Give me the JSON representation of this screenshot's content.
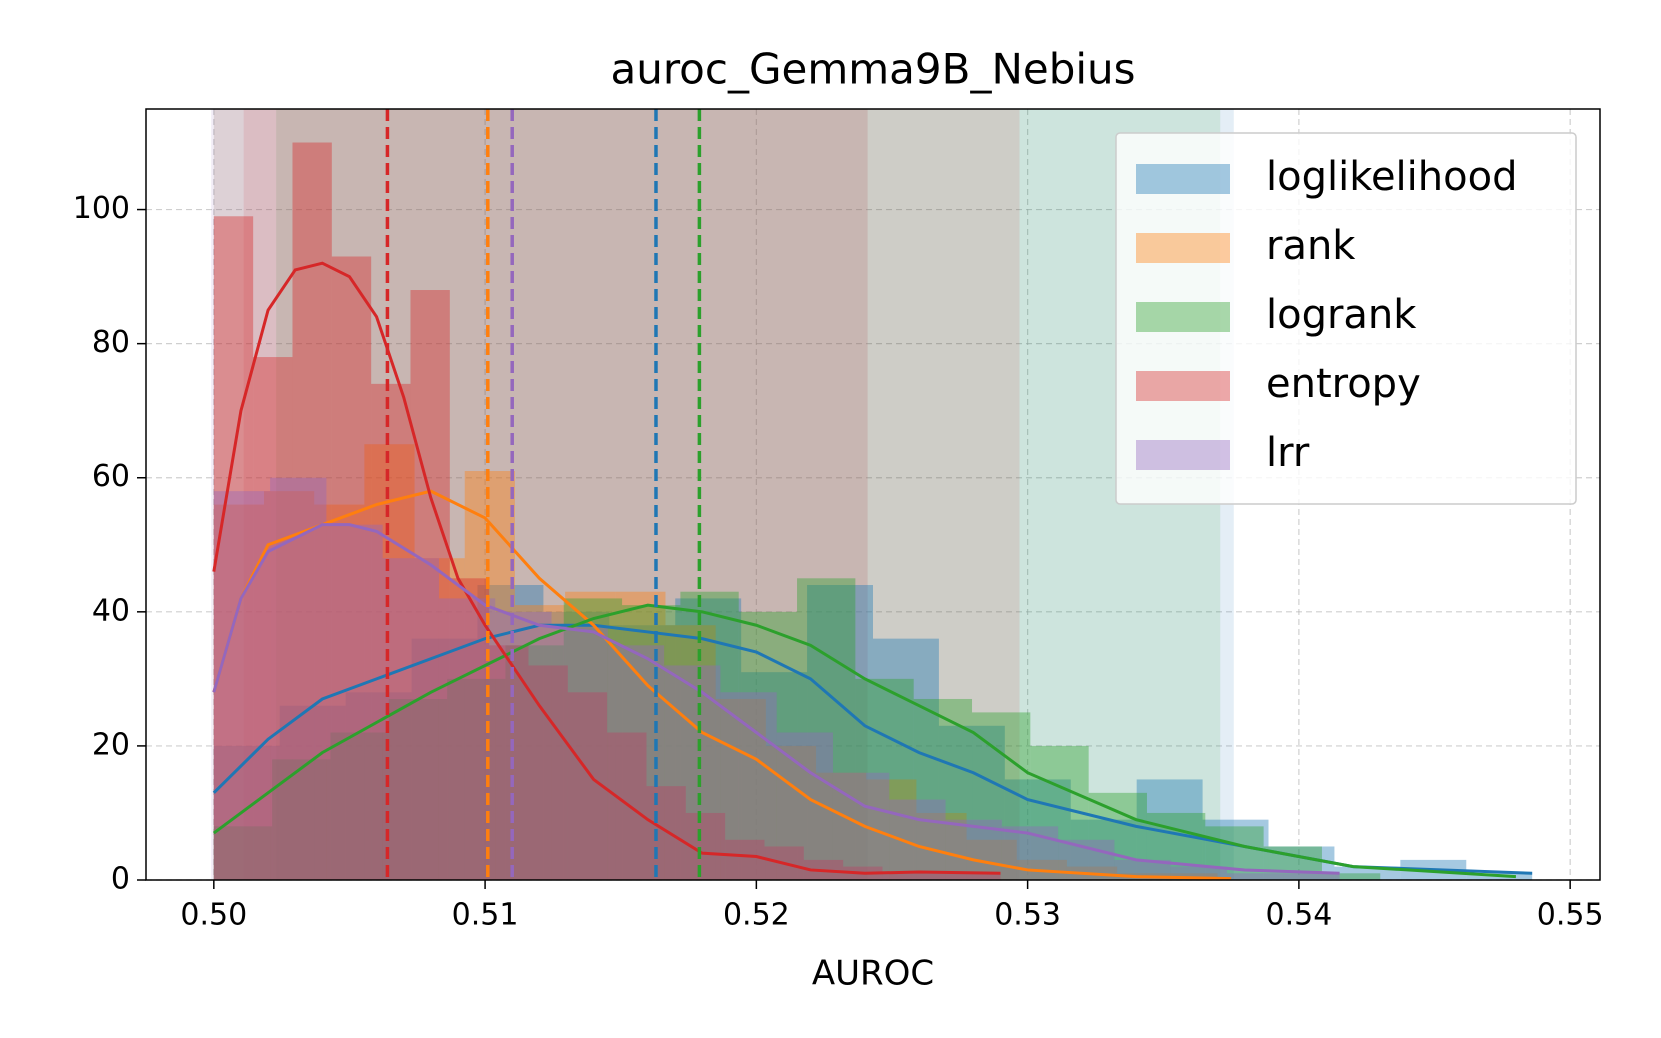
{
  "chart_data": {
    "type": "histogram",
    "title": "auroc_Gemma9B_Nebius",
    "x_label": "AUROC",
    "xlim": [
      0.4975,
      0.5511
    ],
    "ylim": [
      0,
      115
    ],
    "xticks": [
      {
        "value": 0.5,
        "label": "0.50"
      },
      0.51,
      0.52,
      0.53,
      0.54,
      0.55
    ],
    "yticks": [
      0,
      20,
      40,
      60,
      80,
      100
    ],
    "grid": true,
    "legend": "upper right",
    "series": [
      {
        "name": "loglikelihood",
        "color": "#1f77b4",
        "bins": [
          0.5,
          0.50243,
          0.50486,
          0.50729,
          0.50972,
          0.51215,
          0.51458,
          0.51701,
          0.51944,
          0.52187,
          0.5243,
          0.52673,
          0.52916,
          0.53159,
          0.53402,
          0.53645,
          0.53888,
          0.54131,
          0.54374,
          0.54617,
          0.5486
        ],
        "counts": [
          20,
          26,
          28,
          36,
          44,
          40,
          38,
          42,
          31,
          44,
          36,
          23,
          15,
          9,
          15,
          9,
          5,
          2,
          3,
          1
        ],
        "kde": {
          "x": [
            0.5,
            0.502,
            0.504,
            0.506,
            0.508,
            0.51,
            0.512,
            0.514,
            0.516,
            0.518,
            0.52,
            0.522,
            0.524,
            0.526,
            0.528,
            0.53,
            0.534,
            0.538,
            0.542,
            0.5486
          ],
          "y": [
            13,
            21,
            27,
            30,
            33,
            36,
            38,
            38,
            37,
            36,
            34,
            30,
            23,
            19,
            16,
            12,
            8,
            5,
            2,
            1
          ]
        },
        "mean": 0.5163,
        "span": [
          0.5,
          0.5376
        ]
      },
      {
        "name": "rank",
        "color": "#ff7f0e",
        "bins": [
          0.5,
          0.50185,
          0.5037,
          0.50555,
          0.5074,
          0.50925,
          0.5111,
          0.51295,
          0.5148,
          0.51665,
          0.5185,
          0.52035,
          0.5222,
          0.52405,
          0.5259,
          0.52775,
          0.5296,
          0.53145,
          0.5333,
          0.53515,
          0.537
        ],
        "counts": [
          56,
          58,
          56,
          65,
          48,
          61,
          41,
          43,
          43,
          38,
          27,
          20,
          16,
          15,
          10,
          6,
          3,
          2,
          1,
          1
        ],
        "kde": {
          "x": [
            0.5,
            0.501,
            0.502,
            0.504,
            0.506,
            0.508,
            0.51,
            0.512,
            0.514,
            0.516,
            0.518,
            0.52,
            0.522,
            0.524,
            0.526,
            0.528,
            0.53,
            0.534,
            0.5375
          ],
          "y": [
            28,
            42,
            50,
            53,
            56,
            58,
            54,
            45,
            38,
            29,
            22,
            18,
            12,
            8,
            5,
            3,
            1.5,
            0.5,
            0.2
          ]
        },
        "mean": 0.5101,
        "span": [
          0.5,
          0.5241
        ]
      },
      {
        "name": "logrank",
        "color": "#2ca02c",
        "bins": [
          0.5,
          0.50215,
          0.5043,
          0.50645,
          0.5086,
          0.51075,
          0.5129,
          0.51505,
          0.5172,
          0.51935,
          0.5215,
          0.52365,
          0.5258,
          0.52795,
          0.5301,
          0.53225,
          0.5344,
          0.53655,
          0.5387,
          0.54085,
          0.543
        ],
        "counts": [
          8,
          18,
          22,
          27,
          30,
          35,
          42,
          41,
          43,
          40,
          45,
          30,
          27,
          25,
          20,
          13,
          10,
          8,
          5,
          1
        ],
        "kde": {
          "x": [
            0.5,
            0.504,
            0.508,
            0.512,
            0.514,
            0.516,
            0.518,
            0.52,
            0.522,
            0.524,
            0.526,
            0.528,
            0.53,
            0.534,
            0.538,
            0.542,
            0.548
          ],
          "y": [
            7,
            19,
            28,
            36,
            39,
            41,
            40,
            38,
            35,
            30,
            26,
            22,
            16,
            9,
            5,
            2,
            0.5
          ]
        },
        "mean": 0.5179,
        "span": [
          0.5023,
          0.5371
        ]
      },
      {
        "name": "entropy",
        "color": "#d62728",
        "bins": [
          0.5,
          0.50145,
          0.5029,
          0.50435,
          0.5058,
          0.50725,
          0.5087,
          0.51015,
          0.5116,
          0.51305,
          0.5145,
          0.51595,
          0.5174,
          0.51885,
          0.5203,
          0.52175,
          0.5232,
          0.52465,
          0.5261,
          0.52755,
          0.529
        ],
        "counts": [
          99,
          78,
          110,
          93,
          74,
          88,
          45,
          35,
          32,
          28,
          22,
          14,
          10,
          6,
          5,
          3,
          2,
          1,
          1,
          1
        ],
        "kde": {
          "x": [
            0.5,
            0.501,
            0.502,
            0.503,
            0.504,
            0.505,
            0.506,
            0.507,
            0.508,
            0.509,
            0.51,
            0.511,
            0.512,
            0.514,
            0.516,
            0.518,
            0.52,
            0.522,
            0.524,
            0.526,
            0.529
          ],
          "y": [
            46,
            70,
            85,
            91,
            92,
            90,
            84,
            72,
            57,
            45,
            38,
            32,
            26,
            15,
            9,
            4,
            3.5,
            1.5,
            1,
            1.2,
            1
          ]
        },
        "mean": 0.5064,
        "span": [
          0.5011,
          0.5297
        ]
      },
      {
        "name": "lrr",
        "color": "#9467bd",
        "bins": [
          0.5,
          0.502075,
          0.50415,
          0.506225,
          0.5083,
          0.510375,
          0.51245,
          0.514525,
          0.5166,
          0.518675,
          0.52075,
          0.522825,
          0.5249,
          0.526975,
          0.52905,
          0.531125,
          0.5332,
          0.535275,
          0.53735,
          0.539425,
          0.5415
        ],
        "counts": [
          58,
          60,
          53,
          48,
          42,
          40,
          38,
          35,
          32,
          28,
          22,
          16,
          12,
          9,
          8,
          6,
          3,
          2,
          1,
          1
        ],
        "kde": {
          "x": [
            0.5,
            0.501,
            0.502,
            0.504,
            0.505,
            0.506,
            0.508,
            0.51,
            0.512,
            0.514,
            0.516,
            0.518,
            0.52,
            0.522,
            0.524,
            0.526,
            0.53,
            0.534,
            0.538,
            0.5415
          ],
          "y": [
            28,
            42,
            49,
            53,
            53,
            52,
            47,
            41,
            38,
            37,
            33,
            28,
            22,
            16,
            11,
            9,
            7,
            3,
            1.5,
            1
          ]
        },
        "mean": 0.511,
        "span": [
          0.4999,
          0.5241
        ]
      }
    ]
  }
}
